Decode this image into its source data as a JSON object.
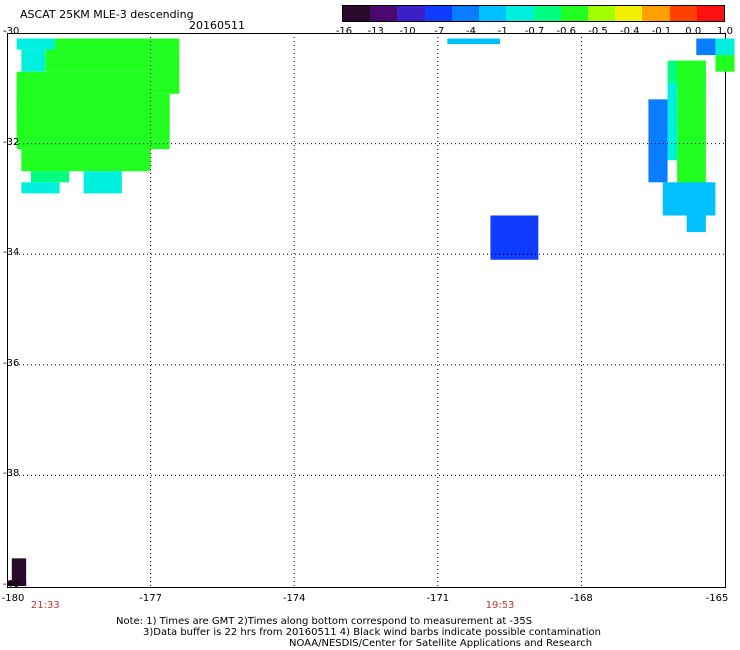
{
  "header": {
    "title": "ASCAT 25KM MLE-3 descending",
    "date": "20160511"
  },
  "colorbar": {
    "ticks": [
      "-16",
      "-13",
      "-10",
      "-7",
      "-4",
      "-1",
      "-0.7",
      "-0.6",
      "-0.5",
      "-0.4",
      "-0.1",
      "0.0",
      "1.0"
    ],
    "colors": [
      "#2a0a2a",
      "#4b0870",
      "#3a20c8",
      "#0f3cff",
      "#0a7dff",
      "#00c0ff",
      "#00f0e0",
      "#00ff80",
      "#20ff20",
      "#a0ff00",
      "#f0f000",
      "#ffa000",
      "#ff4000",
      "#ff1010"
    ]
  },
  "map": {
    "lon_labels": [
      "-180",
      "-177",
      "-174",
      "-171",
      "-168",
      "-165"
    ],
    "lat_labels": [
      "-30",
      "-32",
      "-34",
      "-36",
      "-38",
      "-40"
    ],
    "lon_range": [
      -180,
      -165
    ],
    "lat_range": [
      -30,
      -40
    ],
    "grid": "dotted",
    "time_labels": [
      {
        "text": "21:33",
        "lon": -179.2
      },
      {
        "text": "19:53",
        "lon": -169.7
      }
    ],
    "cells": [
      {
        "lon": -179.7,
        "lat": -30.3,
        "lon2": -179.2,
        "lat2": -30.7,
        "color": "#00f0e0"
      },
      {
        "lon": -179.2,
        "lat": -30.1,
        "lon2": -177.0,
        "lat2": -30.7,
        "color": "#20ff20"
      },
      {
        "lon": -177.0,
        "lat": -30.1,
        "lon2": -176.4,
        "lat2": -31.1,
        "color": "#20ff20"
      },
      {
        "lon": -179.8,
        "lat": -30.7,
        "lon2": -177.0,
        "lat2": -31.3,
        "color": "#20ff20"
      },
      {
        "lon": -179.8,
        "lat": -31.1,
        "lon2": -176.6,
        "lat2": -32.1,
        "color": "#20ff20"
      },
      {
        "lon": -179.7,
        "lat": -32.1,
        "lon2": -177.0,
        "lat2": -32.5,
        "color": "#20ff20"
      },
      {
        "lon": -179.5,
        "lat": -32.5,
        "lon2": -178.7,
        "lat2": -32.7,
        "color": "#00ff80"
      },
      {
        "lon": -179.7,
        "lat": -32.7,
        "lon2": -178.9,
        "lat2": -32.9,
        "color": "#00f0e0"
      },
      {
        "lon": -178.4,
        "lat": -32.5,
        "lon2": -177.6,
        "lat2": -32.9,
        "color": "#00f0e0"
      },
      {
        "lon": -179.8,
        "lat": -30.1,
        "lon2": -179.0,
        "lat2": -30.3,
        "color": "#00f0e0"
      },
      {
        "lon": -170.8,
        "lat": -30.1,
        "lon2": -169.7,
        "lat2": -30.2,
        "color": "#00c0ff"
      },
      {
        "lon": -166.2,
        "lat": -30.5,
        "lon2": -165.4,
        "lat2": -31.0,
        "color": "#00ff80"
      },
      {
        "lon": -166.2,
        "lat": -30.9,
        "lon2": -166.0,
        "lat2": -32.3,
        "color": "#00f0e0"
      },
      {
        "lon": -166.0,
        "lat": -30.5,
        "lon2": -165.4,
        "lat2": -32.9,
        "color": "#20ff20"
      },
      {
        "lon": -166.6,
        "lat": -31.2,
        "lon2": -166.2,
        "lat2": -32.7,
        "color": "#0a7dff"
      },
      {
        "lon": -166.3,
        "lat": -32.7,
        "lon2": -165.2,
        "lat2": -33.3,
        "color": "#00c0ff"
      },
      {
        "lon": -165.8,
        "lat": -33.3,
        "lon2": -165.4,
        "lat2": -33.6,
        "color": "#00c0ff"
      },
      {
        "lon": -165.2,
        "lat": -30.1,
        "lon2": -164.8,
        "lat2": -30.4,
        "color": "#00f0e0"
      },
      {
        "lon": -165.6,
        "lat": -30.1,
        "lon2": -165.2,
        "lat2": -30.4,
        "color": "#0a7dff"
      },
      {
        "lon": -165.2,
        "lat": -30.4,
        "lon2": -164.8,
        "lat2": -30.7,
        "color": "#20ff20"
      },
      {
        "lon": -169.9,
        "lat": -33.3,
        "lon2": -168.9,
        "lat2": -34.1,
        "color": "#0f3cff"
      },
      {
        "lon": -179.9,
        "lat": -39.5,
        "lon2": -179.6,
        "lat2": -40.0,
        "color": "#2a0a2a"
      },
      {
        "lon": -180.0,
        "lat": -39.9,
        "lon2": -179.6,
        "lat2": -40.0,
        "color": "#2a0a2a"
      }
    ]
  },
  "notes": {
    "line1": "Note: 1) Times are GMT 2)Times along bottom correspond to measurement at -35S",
    "line2": "3)Data buffer is 22 hrs from 20160511 4) Black wind barbs indicate possible contamination",
    "line3": "NOAA/NESDIS/Center for Satellite Applications and Research"
  }
}
